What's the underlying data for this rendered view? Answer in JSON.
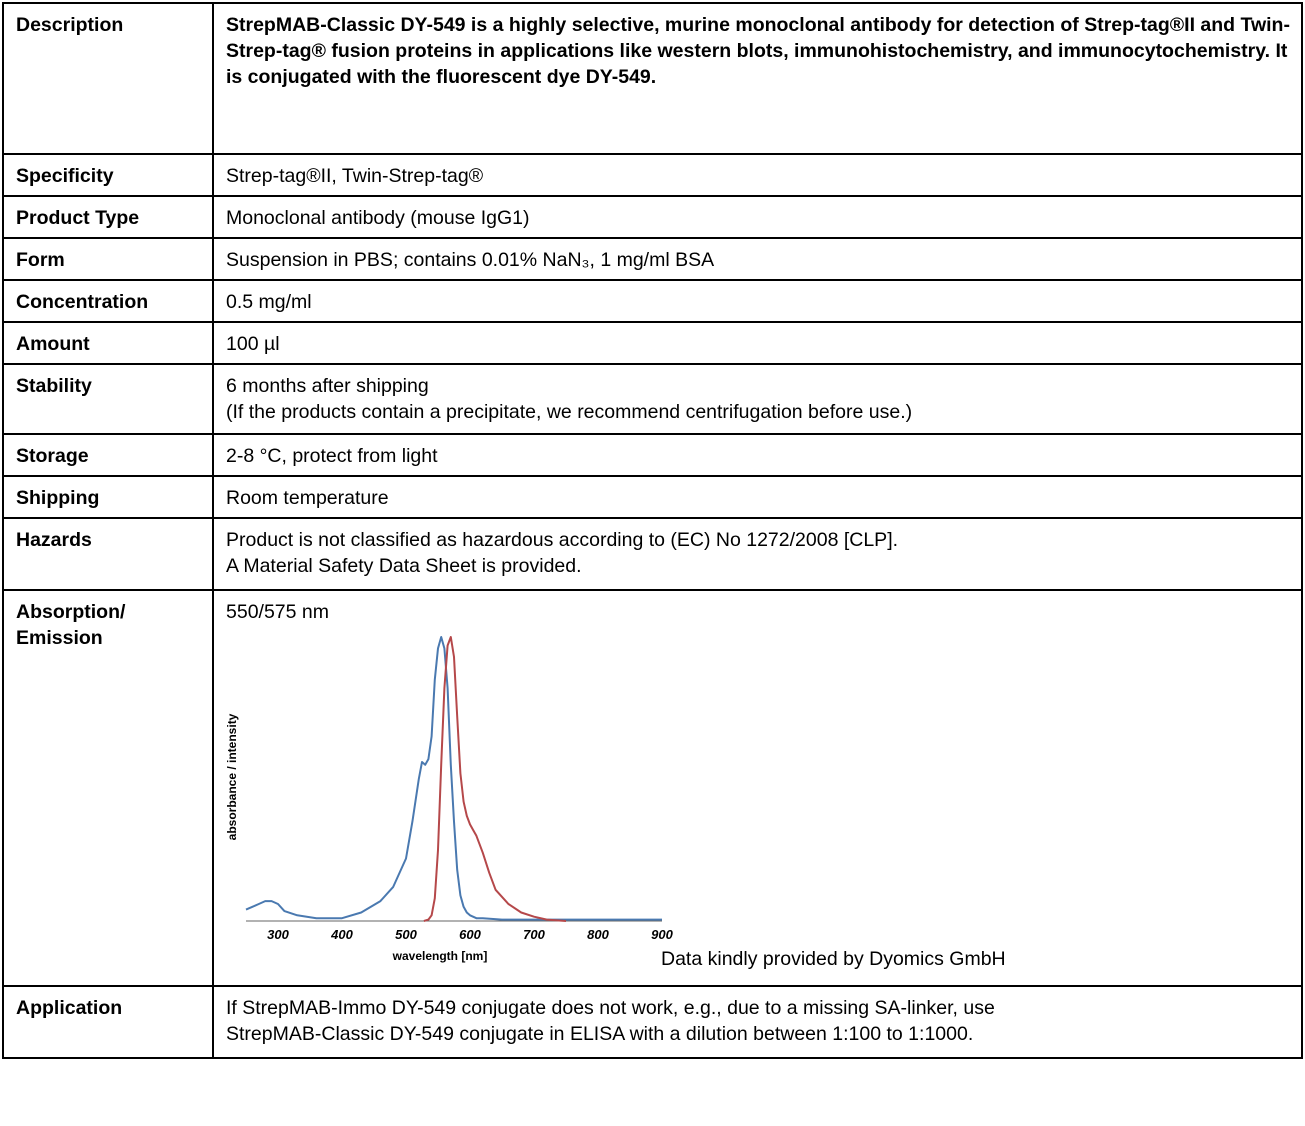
{
  "rows": {
    "description": {
      "label": "Description",
      "value": "StrepMAB-Classic DY-549 is a highly selective, murine monoclonal antibody for detection of Strep-tag®II and Twin-Strep-tag® fusion proteins in applications like western blots, immunohistochemistry, and immunocytochemistry. It is conjugated with the fluorescent dye DY-549."
    },
    "specificity": {
      "label": "Specificity",
      "value": "Strep-tag®II, Twin-Strep-tag®"
    },
    "product_type": {
      "label": "Product Type",
      "value": "Monoclonal antibody (mouse IgG1)"
    },
    "form": {
      "label": "Form",
      "value": "Suspension in PBS; contains 0.01% NaN₃, 1 mg/ml BSA"
    },
    "concentration": {
      "label": "Concentration",
      "value": "0.5 mg/ml"
    },
    "amount": {
      "label": "Amount",
      "value": "100 µl"
    },
    "stability": {
      "label": "Stability",
      "line1": "6 months after shipping",
      "line2": "(If the products contain a precipitate, we recommend centrifugation before use.)"
    },
    "storage": {
      "label": "Storage",
      "value": "2-8 °C, protect from light"
    },
    "shipping": {
      "label": "Shipping",
      "value": "Room temperature"
    },
    "hazards": {
      "label": "Hazards",
      "line1": "Product is not classified as hazardous according to (EC) No 1272/2008 [CLP].",
      "line2": "A Material Safety Data Sheet is provided."
    },
    "absorption": {
      "label_line1": "Absorption/",
      "label_line2": "Emission",
      "value": "550/575 nm",
      "credit": "Data kindly provided by Dyomics GmbH"
    },
    "application": {
      "label": "Application",
      "line1": "If StrepMAB-Immo DY-549 conjugate does not work, e.g., due to a missing SA-linker, use",
      "line2": "StrepMAB-Classic DY-549 conjugate in ELISA with a dilution between 1:100 to 1:1000."
    }
  },
  "chart_data": {
    "type": "line",
    "xlabel": "wavelength [nm]",
    "ylabel": "absorbance / intensity",
    "xlim": [
      250,
      900
    ],
    "ylim": [
      0,
      1
    ],
    "xticks": [
      300,
      400,
      500,
      600,
      700,
      800,
      900
    ],
    "grid": false,
    "series": [
      {
        "color": "#4a79b0",
        "x": [
          250,
          260,
          270,
          280,
          290,
          300,
          310,
          330,
          360,
          400,
          430,
          460,
          480,
          500,
          510,
          520,
          525,
          530,
          535,
          540,
          545,
          550,
          555,
          560,
          565,
          570,
          575,
          580,
          585,
          590,
          595,
          600,
          610,
          620,
          650,
          700,
          800,
          900
        ],
        "y": [
          0.04,
          0.05,
          0.06,
          0.07,
          0.07,
          0.06,
          0.035,
          0.02,
          0.01,
          0.01,
          0.03,
          0.07,
          0.12,
          0.22,
          0.35,
          0.5,
          0.56,
          0.55,
          0.57,
          0.65,
          0.85,
          0.96,
          1.0,
          0.96,
          0.82,
          0.55,
          0.35,
          0.18,
          0.09,
          0.05,
          0.03,
          0.02,
          0.01,
          0.01,
          0.005,
          0.005,
          0.005,
          0.005
        ]
      },
      {
        "color": "#b5484a",
        "x": [
          528,
          535,
          540,
          545,
          550,
          555,
          560,
          565,
          570,
          575,
          580,
          585,
          590,
          595,
          600,
          605,
          610,
          615,
          620,
          630,
          640,
          660,
          680,
          700,
          720,
          750
        ],
        "y": [
          0.0,
          0.005,
          0.02,
          0.08,
          0.25,
          0.55,
          0.82,
          0.97,
          1.0,
          0.93,
          0.72,
          0.52,
          0.42,
          0.37,
          0.34,
          0.32,
          0.3,
          0.27,
          0.24,
          0.17,
          0.11,
          0.06,
          0.03,
          0.015,
          0.005,
          0.0
        ]
      }
    ]
  }
}
